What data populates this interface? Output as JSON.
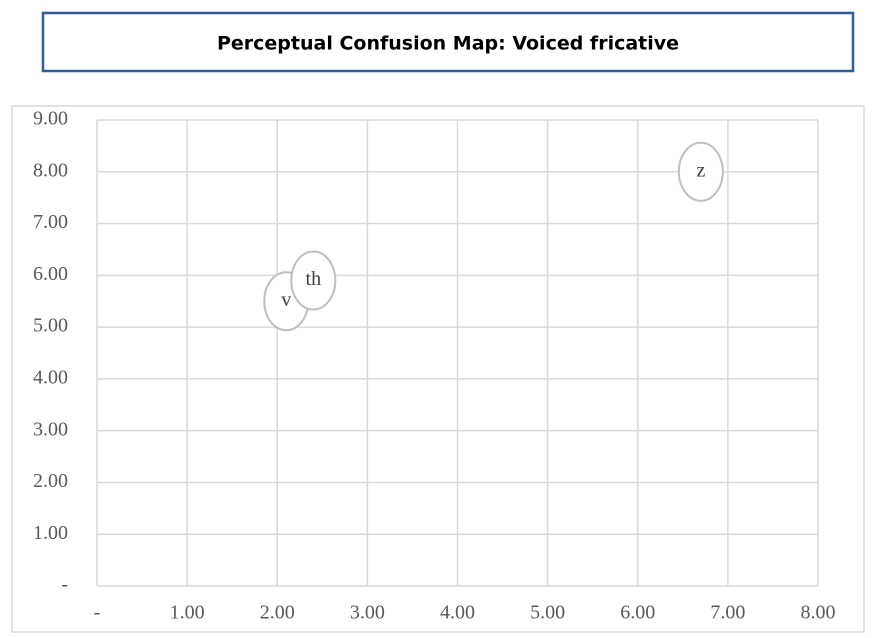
{
  "chart_data": {
    "type": "scatter",
    "title": "Perceptual Confusion Map: Voiced fricative",
    "labels": [
      "v",
      "th",
      "z"
    ],
    "x": [
      2.1,
      2.4,
      6.7
    ],
    "values": [
      5.5,
      5.9,
      8.0
    ],
    "color": "#bfbfbf",
    "xlim": [
      0,
      8
    ],
    "ylim": [
      0,
      9
    ],
    "xticks": [
      {
        "value": 0,
        "label": "-"
      },
      {
        "value": 1,
        "label": "1.00"
      },
      {
        "value": 2,
        "label": "2.00"
      },
      {
        "value": 3,
        "label": "3.00"
      },
      {
        "value": 4,
        "label": "4.00"
      },
      {
        "value": 5,
        "label": "5.00"
      },
      {
        "value": 6,
        "label": "6.00"
      },
      {
        "value": 7,
        "label": "7.00"
      },
      {
        "value": 8,
        "label": "8.00"
      }
    ],
    "yticks": [
      {
        "value": 0,
        "label": "-"
      },
      {
        "value": 1,
        "label": "1.00"
      },
      {
        "value": 2,
        "label": "2.00"
      },
      {
        "value": 3,
        "label": "3.00"
      },
      {
        "value": 4,
        "label": "4.00"
      },
      {
        "value": 5,
        "label": "5.00"
      },
      {
        "value": 6,
        "label": "6.00"
      },
      {
        "value": 7,
        "label": "7.00"
      },
      {
        "value": 8,
        "label": "8.00"
      },
      {
        "value": 9,
        "label": "9.00"
      }
    ],
    "grid": true
  }
}
